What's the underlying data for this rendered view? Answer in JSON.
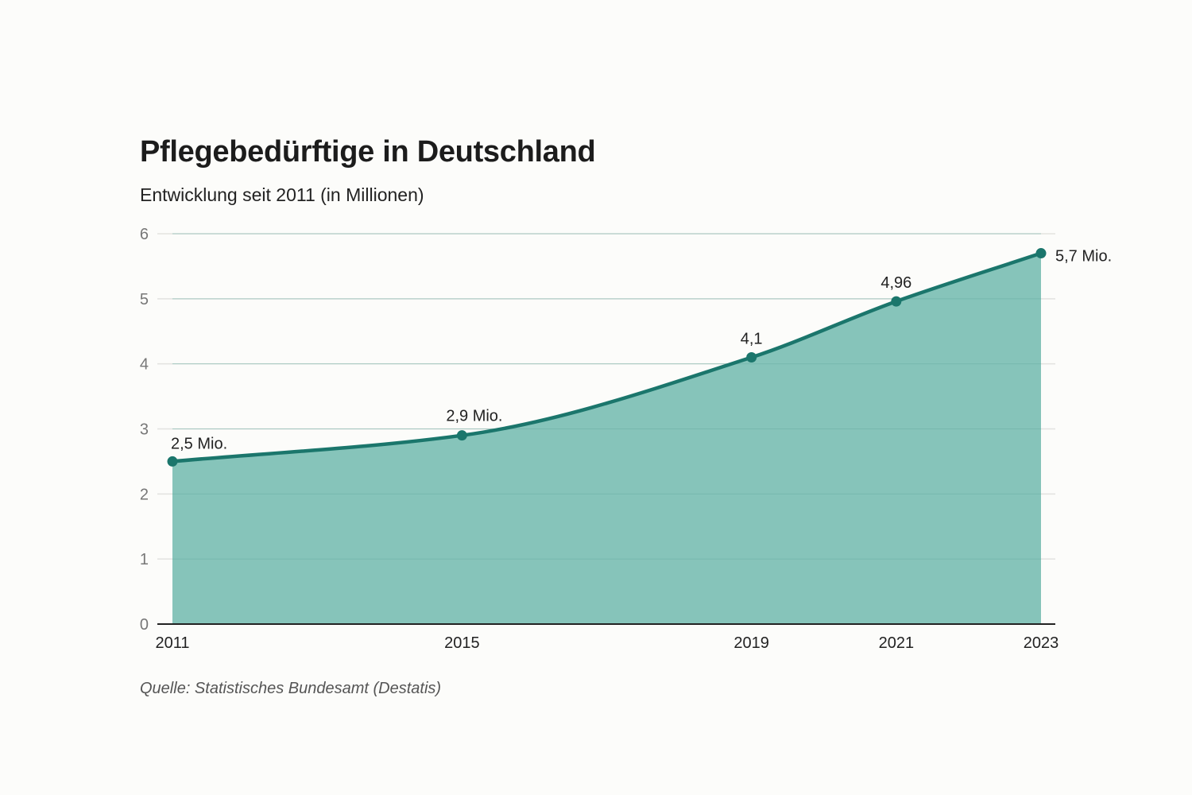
{
  "title": "Pflegebedürftige in Deutschland",
  "subtitle": "Entwicklung seit 2011 (in Millionen)",
  "source": "Quelle: Statistisches Bundesamt (Destatis)",
  "colors": {
    "area_fill": "#86c4ba",
    "line": "#1b766c",
    "grid": "#e3e3e0",
    "axis": "#222222"
  },
  "chart_data": {
    "type": "area",
    "title": "Pflegebedürftige in Deutschland",
    "subtitle": "Entwicklung seit 2011 (in Millionen)",
    "xlabel": "",
    "ylabel": "",
    "x": [
      2011,
      2015,
      2019,
      2021,
      2023
    ],
    "series": [
      {
        "name": "Pflegebedürftige (Mio.)",
        "values": [
          2.5,
          2.9,
          4.1,
          4.96,
          5.7
        ]
      }
    ],
    "data_labels": [
      "2,5 Mio.",
      "2,9 Mio.",
      "4,1",
      "4,96",
      "5,7 Mio."
    ],
    "x_tick_labels": [
      "2011",
      "2015",
      "2019",
      "2021",
      "2023"
    ],
    "y_ticks": [
      0,
      1,
      2,
      3,
      4,
      5,
      6
    ],
    "y_tick_labels": [
      "0",
      "1",
      "2",
      "3",
      "4",
      "5",
      "6"
    ],
    "ylim": [
      0,
      6
    ],
    "xlim": [
      2011,
      2023
    ],
    "grid": true,
    "legend": "none",
    "source": "Quelle: Statistisches Bundesamt (Destatis)"
  }
}
